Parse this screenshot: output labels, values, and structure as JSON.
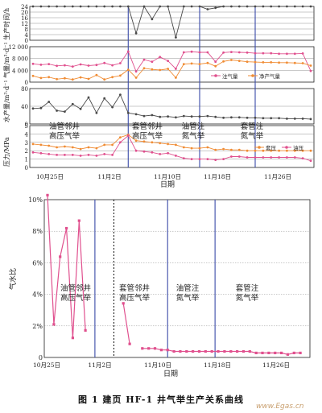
{
  "caption": "图 1   建页 HF-1 井气举生产关系曲线",
  "watermark": "www.Egas.cn",
  "colors": {
    "grid": "#777777",
    "stage": "#3a4aa8",
    "orange": "#f08c34",
    "pink": "#e0508e",
    "gray": "#4a4a4a",
    "axis": "#222222"
  },
  "chart_data": [
    {
      "type": "line",
      "panel": "production_time",
      "ylabel": "生产时间/h",
      "yticks": [
        "24",
        "20",
        "16",
        "12",
        "8",
        "4",
        "0"
      ],
      "ylim": [
        0,
        24
      ],
      "x": [
        1,
        2,
        3,
        4,
        5,
        6,
        7,
        8,
        9,
        10,
        11,
        12,
        13,
        14,
        15,
        16,
        17,
        18,
        19,
        20,
        21,
        22,
        23,
        24,
        25,
        26,
        27,
        28,
        29,
        30,
        31,
        32,
        33,
        34,
        35,
        36
      ],
      "series": [
        {
          "color": "gray",
          "values": [
            24,
            24,
            24,
            24,
            24,
            24,
            24,
            24,
            24,
            24,
            24,
            24,
            24,
            5,
            24,
            15,
            24,
            24,
            2,
            24,
            24,
            24,
            22,
            23,
            24,
            24,
            24,
            24,
            24,
            24,
            24,
            24,
            24,
            24,
            24,
            24
          ]
        }
      ]
    },
    {
      "type": "line",
      "panel": "gas_volume",
      "ylabel": "气量/m³·d⁻¹",
      "yticks": [
        "12 000",
        "8 000",
        "4 000",
        "0"
      ],
      "ylim": [
        0,
        12000
      ],
      "x": [
        1,
        2,
        3,
        4,
        5,
        6,
        7,
        8,
        9,
        10,
        11,
        12,
        13,
        14,
        15,
        16,
        17,
        18,
        19,
        20,
        21,
        22,
        23,
        24,
        25,
        26,
        27,
        28,
        29,
        30,
        31,
        32,
        33,
        34,
        35,
        36
      ],
      "series": [
        {
          "name": "注气量",
          "color": "pink",
          "values": [
            6200,
            5900,
            6100,
            5500,
            5700,
            5300,
            6000,
            5600,
            5800,
            6500,
            5700,
            6400,
            10400,
            3600,
            7600,
            6900,
            8500,
            7200,
            4500,
            10100,
            10300,
            10100,
            10100,
            6900,
            10000,
            10200,
            10100,
            10000,
            9800,
            9800,
            9800,
            9600,
            9600,
            9600,
            9700,
            3800
          ]
        },
        {
          "name": "净产气量",
          "color": "orange",
          "values": [
            2100,
            1400,
            1700,
            1000,
            1300,
            900,
            1600,
            1100,
            2400,
            900,
            1700,
            2200,
            4200,
            1500,
            4700,
            4300,
            4100,
            4500,
            1500,
            6100,
            6300,
            6100,
            6500,
            5400,
            7000,
            7500,
            7200,
            6900,
            6800,
            6700,
            6700,
            6600,
            6600,
            6500,
            6400,
            5600
          ]
        }
      ],
      "legend": "right"
    },
    {
      "type": "line",
      "panel": "water_volume",
      "ylabel": "水产量/m³·d⁻¹",
      "yticks": [
        "80",
        "40",
        "0"
      ],
      "ylim": [
        0,
        80
      ],
      "x": [
        1,
        2,
        3,
        4,
        5,
        6,
        7,
        8,
        9,
        10,
        11,
        12,
        13,
        14,
        15,
        16,
        17,
        18,
        19,
        20,
        21,
        22,
        23,
        24,
        25,
        26,
        27,
        28,
        29,
        30,
        31,
        32,
        33,
        34,
        35,
        36
      ],
      "series": [
        {
          "color": "gray",
          "values": [
            35,
            36,
            50,
            30,
            28,
            45,
            34,
            60,
            25,
            58,
            38,
            66,
            25,
            22,
            18,
            20,
            16,
            17,
            15,
            18,
            17,
            17,
            18,
            16,
            14,
            15,
            15,
            14,
            14,
            13,
            13,
            13,
            12,
            12,
            12,
            11
          ]
        }
      ]
    },
    {
      "type": "line",
      "panel": "pressure",
      "ylabel": "压力/MPa",
      "yticks": [
        "5",
        "4",
        "3",
        "2",
        "1",
        "0"
      ],
      "ylim": [
        0,
        5
      ],
      "xticks": [
        "10月25日",
        "11月2日",
        "11月10日",
        "11月18日",
        "11月26日"
      ],
      "xlabel": "日期",
      "series": [
        {
          "name": "套压",
          "color": "orange",
          "values": [
            2.8,
            2.7,
            2.6,
            2.4,
            2.5,
            2.4,
            2.2,
            2.4,
            2.3,
            2.7,
            2.7,
            3.6,
            3.9,
            3.2,
            3.1,
            3.0,
            2.9,
            2.8,
            2.7,
            2.4,
            2.3,
            2.3,
            2.4,
            2.1,
            2.2,
            2.1,
            2.1,
            2.0,
            2.0,
            2.0,
            2.0,
            2.0,
            2.0,
            2.0,
            2.0,
            2.0
          ]
        },
        {
          "name": "油压",
          "color": "pink",
          "values": [
            1.8,
            1.7,
            1.6,
            1.5,
            1.5,
            1.5,
            1.4,
            1.5,
            1.4,
            1.6,
            1.5,
            3.0,
            3.8,
            2.0,
            1.9,
            1.8,
            1.6,
            1.7,
            1.4,
            1.1,
            1.0,
            1.0,
            1.0,
            0.9,
            1.0,
            1.3,
            1.3,
            1.2,
            1.2,
            1.2,
            1.2,
            1.2,
            1.2,
            1.2,
            1.1,
            0.8
          ]
        }
      ],
      "legend": "top-right"
    },
    {
      "type": "line",
      "panel": "gas_water_ratio",
      "ylabel": "气水比",
      "yticks": [
        "10%",
        "8%",
        "6%",
        "4%",
        "2%",
        "0"
      ],
      "ylim": [
        0,
        10.5
      ],
      "xticks": [
        "10月25日",
        "11月2日",
        "11月10日",
        "11月18日",
        "11月26日"
      ],
      "xlabel": "日期",
      "x": [
        1,
        2,
        3,
        4,
        5,
        6,
        7,
        8,
        13,
        14,
        15,
        16,
        17,
        18,
        19,
        20,
        21,
        22,
        23,
        24,
        25,
        26,
        27,
        28,
        29,
        30,
        31,
        32,
        33,
        34,
        35,
        36,
        37,
        38,
        39,
        40,
        41
      ],
      "series": [
        {
          "color": "pink",
          "values": [
            10.8,
            2.2,
            6.7,
            8.6,
            1.3,
            9.1,
            1.8,
            null,
            3.6,
            0.9,
            null,
            0.6,
            0.6,
            0.6,
            0.5,
            0.5,
            0.4,
            0.4,
            0.4,
            0.4,
            0.4,
            0.4,
            0.4,
            0.4,
            0.4,
            0.4,
            0.4,
            0.4,
            0.4,
            0.3,
            0.3,
            0.3,
            0.3,
            0.3,
            0.2,
            0.3,
            0.3
          ]
        }
      ]
    }
  ],
  "stage_labels_top": [
    {
      "l1": "油管邻井",
      "l2": "高压气举"
    },
    {
      "l1": "套管邻井",
      "l2": "高压气举"
    },
    {
      "l1": "油管注",
      "l2": "氮气举"
    },
    {
      "l1": "套管注",
      "l2": "氮气举"
    }
  ],
  "stage_labels_bottom": [
    {
      "l1": "油管邻井",
      "l2": "高压气举"
    },
    {
      "l1": "套管邻井",
      "l2": "高压气举"
    },
    {
      "l1": "油管注",
      "l2": "氮气举"
    },
    {
      "l1": "套管注",
      "l2": "氮气举"
    }
  ],
  "axis": {
    "ylabel_top": "水产量/m³·d⁻¹ 气量/m³·d⁻¹ 生产时间/h"
  }
}
